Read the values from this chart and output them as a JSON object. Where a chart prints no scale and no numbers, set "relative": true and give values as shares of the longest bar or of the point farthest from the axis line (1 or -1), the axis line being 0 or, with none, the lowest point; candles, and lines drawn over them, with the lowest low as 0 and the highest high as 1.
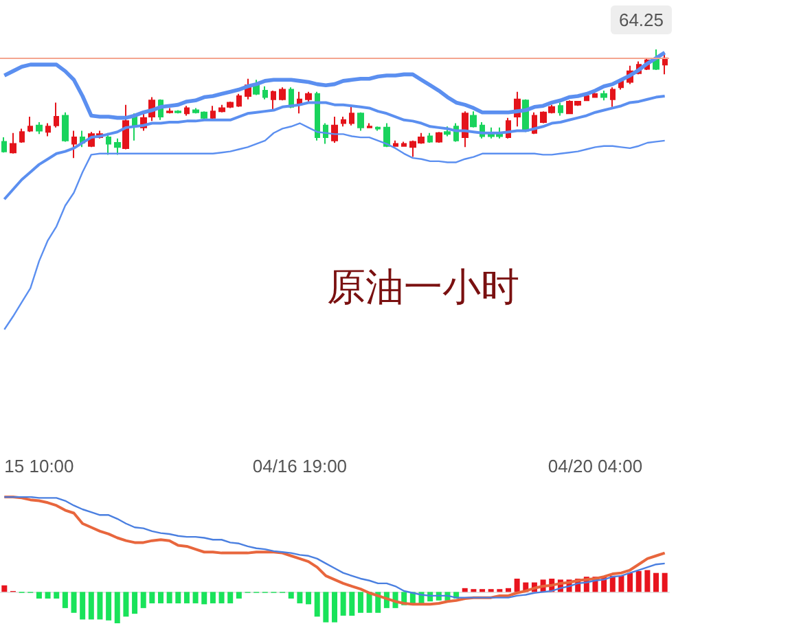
{
  "chart_data": [
    {
      "type": "candlestick",
      "title": "原油一小时",
      "relative": true,
      "tick_labels": "x",
      "marker": "none",
      "categories": [
        null,
        null,
        null,
        null,
        "15 10:00",
        null,
        null,
        null,
        null,
        null,
        null,
        null,
        null,
        null,
        null,
        null,
        null,
        null,
        null,
        null,
        null,
        null,
        null,
        null,
        null,
        null,
        null,
        null,
        null,
        null,
        null,
        null,
        null,
        null,
        "04/16 19:00",
        null,
        null,
        null,
        null,
        null,
        null,
        null,
        null,
        null,
        null,
        null,
        null,
        null,
        null,
        null,
        null,
        null,
        null,
        null,
        null,
        null,
        null,
        null,
        null,
        null,
        null,
        null,
        null,
        null,
        null,
        null,
        null,
        null,
        "04/20 04:00",
        null,
        null,
        null,
        null,
        null,
        null,
        null,
        null
      ],
      "series": [
        {
          "type": "candlestick",
          "ohlc": [
            [
              0.15,
              0.19,
              0.05,
              0.06
            ],
            [
              0.05,
              0.23,
              0.04,
              0.13
            ],
            [
              0.15,
              0.27,
              0.14,
              0.24
            ],
            [
              0.25,
              0.38,
              0.24,
              0.29
            ],
            [
              0.3,
              0.33,
              0.22,
              0.25
            ],
            [
              0.24,
              0.32,
              0.2,
              0.29
            ],
            [
              0.3,
              0.51,
              0.28,
              0.38
            ],
            [
              0.39,
              0.42,
              0.15,
              0.16
            ],
            [
              0.13,
              0.25,
              0,
              0.19
            ],
            [
              0.19,
              0.25,
              0.1,
              0.14
            ],
            [
              0.11,
              0.24,
              0.1,
              0.22
            ],
            [
              0.19,
              0.25,
              0.18,
              0.22
            ],
            [
              0.19,
              0.23,
              0.03,
              0.13
            ],
            [
              0.14,
              0.18,
              0.03,
              0.1
            ],
            [
              0.09,
              0.49,
              0.08,
              0.34
            ],
            [
              0.39,
              0.41,
              0.16,
              0.29
            ],
            [
              0.28,
              0.41,
              0.25,
              0.37
            ],
            [
              0.38,
              0.56,
              0.34,
              0.53
            ],
            [
              0.53,
              0.54,
              0.35,
              0.38
            ],
            [
              0.42,
              0.46,
              0.41,
              0.43
            ],
            [
              0.43,
              0.44,
              0.41,
              0.42
            ],
            [
              0.41,
              0.48,
              0.39,
              0.46
            ],
            [
              0.44,
              0.46,
              0.41,
              0.42
            ],
            [
              0.42,
              0.43,
              0.35,
              0.37
            ],
            [
              0.37,
              0.48,
              0.35,
              0.43
            ],
            [
              0.43,
              0.49,
              0.42,
              0.46
            ],
            [
              0.47,
              0.52,
              0.46,
              0.51
            ],
            [
              0.48,
              0.59,
              0.47,
              0.57
            ],
            [
              0.57,
              0.73,
              0.54,
              0.67
            ],
            [
              0.67,
              0.72,
              0.58,
              0.59
            ],
            [
              0.62,
              0.66,
              0.54,
              0.56
            ],
            [
              0.54,
              0.62,
              0.44,
              0.61
            ],
            [
              0.54,
              0.65,
              0.53,
              0.63
            ],
            [
              0.63,
              0.65,
              0.46,
              0.47
            ],
            [
              0.49,
              0.61,
              0.41,
              0.54
            ],
            [
              0.54,
              0.61,
              0.52,
              0.59
            ],
            [
              0.59,
              0.61,
              0.16,
              0.19
            ],
            [
              0.3,
              0.32,
              0.13,
              0.19
            ],
            [
              0.16,
              0.38,
              0.14,
              0.3
            ],
            [
              0.32,
              0.38,
              0.29,
              0.35
            ],
            [
              0.32,
              0.47,
              0.3,
              0.41
            ],
            [
              0.41,
              0.42,
              0.25,
              0.28
            ],
            [
              0.28,
              0.32,
              0.28,
              0.29
            ],
            [
              0.28,
              0.29,
              0.25,
              0.27
            ],
            [
              0.28,
              0.32,
              0.1,
              0.11
            ],
            [
              0.11,
              0.16,
              0.11,
              0.13
            ],
            [
              0.11,
              0.15,
              0.11,
              0.13
            ],
            [
              0.1,
              0.16,
              0.01,
              0.15
            ],
            [
              0.14,
              0.23,
              0.13,
              0.19
            ],
            [
              0.2,
              0.23,
              0.14,
              0.15
            ],
            [
              0.15,
              0.24,
              0.14,
              0.23
            ],
            [
              0.24,
              0.29,
              0.2,
              0.22
            ],
            [
              0.29,
              0.32,
              0.15,
              0.16
            ],
            [
              0.19,
              0.43,
              0.1,
              0.41
            ],
            [
              0.39,
              0.43,
              0.28,
              0.29
            ],
            [
              0.3,
              0.33,
              0.18,
              0.2
            ],
            [
              0.23,
              0.28,
              0.18,
              0.2
            ],
            [
              0.23,
              0.28,
              0.18,
              0.2
            ],
            [
              0.19,
              0.37,
              0.18,
              0.34
            ],
            [
              0.38,
              0.61,
              0.29,
              0.54
            ],
            [
              0.53,
              0.54,
              0.24,
              0.25
            ],
            [
              0.23,
              0.42,
              0.22,
              0.39
            ],
            [
              0.33,
              0.43,
              0.32,
              0.42
            ],
            [
              0.42,
              0.49,
              0.41,
              0.47
            ],
            [
              0.48,
              0.51,
              0.39,
              0.42
            ],
            [
              0.41,
              0.53,
              0.41,
              0.52
            ],
            [
              0.49,
              0.52,
              0.48,
              0.52
            ],
            [
              0.53,
              0.58,
              0.53,
              0.57
            ],
            [
              0.56,
              0.62,
              0.56,
              0.59
            ],
            [
              0.59,
              0.62,
              0.53,
              0.56
            ],
            [
              0.54,
              0.65,
              0.47,
              0.63
            ],
            [
              0.65,
              0.72,
              0.63,
              0.71
            ],
            [
              0.7,
              0.85,
              0.68,
              0.8
            ],
            [
              0.78,
              0.89,
              0.77,
              0.86
            ],
            [
              0.82,
              0.92,
              0.81,
              0.9
            ],
            [
              0.91,
              1,
              0.81,
              0.82
            ],
            [
              0.86,
              0.97,
              0.77,
              0.92
            ]
          ],
          "colors": [
            "#19d35c",
            "#e4141b",
            "#e4141b",
            "#e4141b",
            "#19d35c",
            "#e4141b",
            "#e4141b",
            "#19d35c",
            "#e4141b",
            "#19d35c",
            "#e4141b",
            "#e4141b",
            "#19d35c",
            "#19d35c",
            "#e4141b",
            "#19d35c",
            "#e4141b",
            "#e4141b",
            "#19d35c",
            "#e4141b",
            "#19d35c",
            "#e4141b",
            "#19d35c",
            "#19d35c",
            "#e4141b",
            "#e4141b",
            "#e4141b",
            "#e4141b",
            "#e4141b",
            "#19d35c",
            "#19d35c",
            "#e4141b",
            "#e4141b",
            "#19d35c",
            "#e4141b",
            "#e4141b",
            "#19d35c",
            "#19d35c",
            "#e4141b",
            "#e4141b",
            "#e4141b",
            "#19d35c",
            "#e4141b",
            "#19d35c",
            "#19d35c",
            "#e4141b",
            "#e4141b",
            "#e4141b",
            "#e4141b",
            "#19d35c",
            "#e4141b",
            "#19d35c",
            "#19d35c",
            "#e4141b",
            "#19d35c",
            "#19d35c",
            "#19d35c",
            "#19d35c",
            "#e4141b",
            "#e4141b",
            "#19d35c",
            "#e4141b",
            "#e4141b",
            "#e4141b",
            "#19d35c",
            "#e4141b",
            "#e4141b",
            "#e4141b",
            "#e4141b",
            "#19d35c",
            "#e4141b",
            "#e4141b",
            "#e4141b",
            "#e4141b",
            "#e4141b",
            "#19d35c",
            "#e4141b"
          ]
        },
        {
          "type": "line",
          "color": "#5b8ff0",
          "values": [
            0.76,
            0.8,
            0.84,
            0.86,
            0.86,
            0.86,
            0.86,
            0.8,
            0.72,
            0.57,
            0.39,
            0.38,
            0.38,
            0.37,
            0.37,
            0.39,
            0.42,
            0.44,
            0.47,
            0.48,
            0.49,
            0.52,
            0.53,
            0.56,
            0.57,
            0.59,
            0.61,
            0.63,
            0.66,
            0.68,
            0.71,
            0.72,
            0.72,
            0.72,
            0.71,
            0.7,
            0.68,
            0.67,
            0.68,
            0.71,
            0.72,
            0.73,
            0.73,
            0.75,
            0.76,
            0.76,
            0.77,
            0.77,
            0.72,
            0.67,
            0.62,
            0.56,
            0.51,
            0.49,
            0.46,
            0.42,
            0.42,
            0.42,
            0.42,
            0.43,
            0.44,
            0.47,
            0.48,
            0.51,
            0.53,
            0.56,
            0.57,
            0.59,
            0.62,
            0.66,
            0.68,
            0.72,
            0.76,
            0.81,
            0.87,
            0.92,
            0.97
          ]
        },
        {
          "type": "line",
          "color": "#5b8ff0",
          "values": [
            -0.38,
            -0.29,
            -0.2,
            -0.13,
            -0.06,
            -0.01,
            0.04,
            0.06,
            0.09,
            0.14,
            0.19,
            0.2,
            0.22,
            0.24,
            0.28,
            0.29,
            0.3,
            0.32,
            0.32,
            0.33,
            0.33,
            0.34,
            0.34,
            0.35,
            0.35,
            0.35,
            0.35,
            0.38,
            0.41,
            0.42,
            0.43,
            0.44,
            0.47,
            0.48,
            0.49,
            0.51,
            0.51,
            0.51,
            0.49,
            0.49,
            0.48,
            0.47,
            0.46,
            0.43,
            0.41,
            0.38,
            0.35,
            0.34,
            0.32,
            0.29,
            0.28,
            0.27,
            0.25,
            0.25,
            0.24,
            0.23,
            0.23,
            0.23,
            0.24,
            0.25,
            0.25,
            0.27,
            0.29,
            0.32,
            0.33,
            0.35,
            0.37,
            0.39,
            0.42,
            0.44,
            0.46,
            0.48,
            0.51,
            0.52,
            0.54,
            0.56,
            0.57
          ]
        },
        {
          "type": "line",
          "color": "#5b8ff0",
          "values": [
            -1.58,
            -1.46,
            -1.33,
            -1.2,
            -0.95,
            -0.76,
            -0.63,
            -0.44,
            -0.32,
            -0.13,
            0.03,
            0.04,
            0.04,
            0.04,
            0.04,
            0.04,
            0.04,
            0.04,
            0.04,
            0.04,
            0.04,
            0.04,
            0.04,
            0.04,
            0.04,
            0.05,
            0.06,
            0.08,
            0.1,
            0.13,
            0.16,
            0.23,
            0.27,
            0.29,
            0.32,
            0.28,
            0.24,
            0.23,
            0.22,
            0.22,
            0.2,
            0.19,
            0.19,
            0.16,
            0.13,
            0.09,
            0.04,
            0,
            -0.01,
            -0.03,
            -0.03,
            -0.04,
            -0.04,
            -0.01,
            0.01,
            0.04,
            0.04,
            0.04,
            0.04,
            0.04,
            0.04,
            0.04,
            0.03,
            0.03,
            0.04,
            0.05,
            0.06,
            0.08,
            0.1,
            0.11,
            0.11,
            0.1,
            0.09,
            0.11,
            0.14,
            0.15,
            0.16
          ]
        }
      ],
      "ref_lines": [
        {
          "axis": "y",
          "value": 0.92,
          "color": "#f4a58f"
        }
      ],
      "annotations": [
        "64.25"
      ]
    },
    {
      "type": "bar",
      "relative": true,
      "tick_labels": false,
      "marker": "none",
      "categories": [
        null,
        null,
        null,
        null,
        null,
        null,
        null,
        null,
        null,
        null,
        null,
        null,
        null,
        null,
        null,
        null,
        null,
        null,
        null,
        null,
        null,
        null,
        null,
        null,
        null,
        null,
        null,
        null,
        null,
        null,
        null,
        null,
        null,
        null,
        null,
        null,
        null,
        null,
        null,
        null,
        null,
        null,
        null,
        null,
        null,
        null,
        null,
        null,
        null,
        null,
        null,
        null,
        null,
        null,
        null,
        null,
        null,
        null,
        null,
        null,
        null,
        null,
        null,
        null,
        null,
        null,
        null,
        null,
        null,
        null,
        null,
        null,
        null,
        null,
        null,
        null,
        null
      ],
      "series": [
        {
          "type": "bar",
          "values": [
            0.07,
            0.01,
            -0.01,
            -0.01,
            -0.07,
            -0.07,
            -0.07,
            -0.17,
            -0.22,
            -0.29,
            -0.29,
            -0.29,
            -0.3,
            -0.33,
            -0.26,
            -0.23,
            -0.17,
            -0.12,
            -0.12,
            -0.12,
            -0.12,
            -0.12,
            -0.12,
            -0.13,
            -0.12,
            -0.12,
            -0.12,
            -0.07,
            -0.01,
            -0.01,
            -0.01,
            -0.01,
            -0.01,
            -0.07,
            -0.12,
            -0.13,
            -0.26,
            -0.32,
            -0.32,
            -0.25,
            -0.25,
            -0.22,
            -0.22,
            -0.22,
            -0.17,
            -0.17,
            -0.14,
            -0.14,
            -0.12,
            -0.1,
            -0.09,
            -0.09,
            -0.07,
            0.04,
            0.03,
            0.03,
            0.03,
            0.03,
            0.04,
            0.14,
            0.1,
            0.1,
            0.13,
            0.14,
            0.13,
            0.13,
            0.14,
            0.16,
            0.16,
            0.16,
            0.17,
            0.17,
            0.2,
            0.22,
            0.23,
            0.2,
            0.2
          ],
          "colors": [
            "#e8141e",
            "#e8141e",
            "#19e35a",
            "#19e35a",
            "#19e35a",
            "#19e35a",
            "#19e35a",
            "#19e35a",
            "#19e35a",
            "#19e35a",
            "#19e35a",
            "#19e35a",
            "#19e35a",
            "#19e35a",
            "#19e35a",
            "#19e35a",
            "#19e35a",
            "#19e35a",
            "#19e35a",
            "#19e35a",
            "#19e35a",
            "#19e35a",
            "#19e35a",
            "#19e35a",
            "#19e35a",
            "#19e35a",
            "#19e35a",
            "#19e35a",
            "#19e35a",
            "#19e35a",
            "#19e35a",
            "#19e35a",
            "#19e35a",
            "#19e35a",
            "#19e35a",
            "#19e35a",
            "#19e35a",
            "#19e35a",
            "#19e35a",
            "#19e35a",
            "#19e35a",
            "#19e35a",
            "#19e35a",
            "#19e35a",
            "#19e35a",
            "#19e35a",
            "#19e35a",
            "#19e35a",
            "#19e35a",
            "#19e35a",
            "#19e35a",
            "#19e35a",
            "#19e35a",
            "#e8141e",
            "#e8141e",
            "#e8141e",
            "#e8141e",
            "#e8141e",
            "#e8141e",
            "#e8141e",
            "#e8141e",
            "#e8141e",
            "#e8141e",
            "#e8141e",
            "#e8141e",
            "#e8141e",
            "#e8141e",
            "#e8141e",
            "#e8141e",
            "#e8141e",
            "#e8141e",
            "#e8141e",
            "#e8141e",
            "#e8141e",
            "#e8141e",
            "#e8141e",
            "#e8141e"
          ]
        },
        {
          "type": "line",
          "color": "#e8663d",
          "values": [
            1.0,
            1.0,
            0.99,
            0.97,
            0.96,
            0.94,
            0.91,
            0.86,
            0.83,
            0.72,
            0.68,
            0.64,
            0.61,
            0.57,
            0.54,
            0.52,
            0.52,
            0.54,
            0.55,
            0.54,
            0.49,
            0.48,
            0.45,
            0.42,
            0.42,
            0.41,
            0.41,
            0.41,
            0.41,
            0.42,
            0.42,
            0.42,
            0.41,
            0.38,
            0.35,
            0.32,
            0.26,
            0.17,
            0.13,
            0.09,
            0.06,
            0.03,
            -0.01,
            -0.04,
            -0.07,
            -0.1,
            -0.12,
            -0.13,
            -0.13,
            -0.13,
            -0.12,
            -0.1,
            -0.09,
            -0.07,
            -0.06,
            -0.06,
            -0.06,
            -0.04,
            -0.04,
            -0.01,
            0.01,
            0.04,
            0.06,
            0.07,
            0.09,
            0.1,
            0.12,
            0.13,
            0.14,
            0.16,
            0.19,
            0.2,
            0.23,
            0.29,
            0.35,
            0.38,
            0.41
          ]
        },
        {
          "type": "line",
          "color": "#4a7fe0",
          "values": [
            1.0,
            1.0,
            1.0,
            1.0,
            0.99,
            0.99,
            0.99,
            0.96,
            0.91,
            0.87,
            0.84,
            0.81,
            0.81,
            0.77,
            0.72,
            0.68,
            0.67,
            0.64,
            0.62,
            0.61,
            0.59,
            0.58,
            0.58,
            0.57,
            0.55,
            0.55,
            0.52,
            0.51,
            0.48,
            0.46,
            0.45,
            0.43,
            0.42,
            0.41,
            0.39,
            0.38,
            0.35,
            0.3,
            0.25,
            0.2,
            0.17,
            0.14,
            0.12,
            0.09,
            0.09,
            0.06,
            0.01,
            -0.01,
            -0.03,
            -0.04,
            -0.04,
            -0.04,
            -0.06,
            -0.06,
            -0.06,
            -0.06,
            -0.06,
            -0.06,
            -0.06,
            -0.04,
            -0.03,
            -0.01,
            0,
            0.01,
            0.04,
            0.06,
            0.09,
            0.1,
            0.12,
            0.13,
            0.16,
            0.17,
            0.2,
            0.23,
            0.26,
            0.29,
            0.3
          ]
        }
      ]
    }
  ]
}
